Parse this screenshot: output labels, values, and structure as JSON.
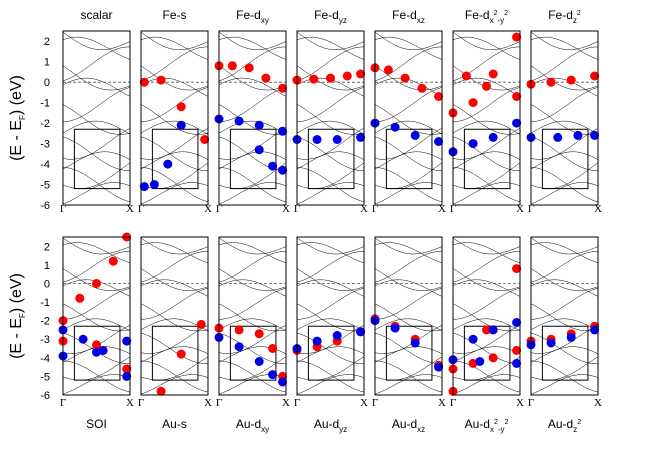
{
  "figure": {
    "y_label_parts": [
      "(E - E",
      "F",
      ") (eV)"
    ],
    "y_ticks": [
      "2",
      "1",
      "0",
      "-1",
      "-2",
      "-3",
      "-4",
      "-5",
      "-6"
    ],
    "k_labels": [
      "Γ",
      "X"
    ]
  },
  "colors": {
    "red": "#ff0000",
    "blue": "#0000e6",
    "band": "#000000",
    "box": "#000000"
  },
  "chart_data": [
    {
      "type": "line",
      "row": "top",
      "x": [
        "Γ",
        "X"
      ],
      "ylim": [
        -6,
        2.5
      ],
      "ylabel": "(E - EF) (eV)",
      "fermi_level": 0,
      "boxed_window": {
        "y": [
          -5.2,
          -2.3
        ]
      },
      "panels": [
        {
          "title": [
            "scalar"
          ],
          "red": [],
          "blue": []
        },
        {
          "title": [
            "Fe-s"
          ],
          "red": [
            [
              0.05,
              0.0
            ],
            [
              0.3,
              0.1
            ],
            [
              0.6,
              -1.2
            ],
            [
              0.95,
              -2.8
            ]
          ],
          "blue": [
            [
              0.05,
              -5.1
            ],
            [
              0.2,
              -5.0
            ],
            [
              0.4,
              -4.0
            ],
            [
              0.6,
              -2.1
            ]
          ]
        },
        {
          "title": [
            "Fe-d",
            "xy"
          ],
          "red": [
            [
              0.0,
              0.8
            ],
            [
              0.2,
              0.8
            ],
            [
              0.45,
              0.7
            ],
            [
              0.7,
              0.2
            ],
            [
              0.95,
              -0.3
            ]
          ],
          "blue": [
            [
              0.0,
              -1.8
            ],
            [
              0.3,
              -1.9
            ],
            [
              0.6,
              -2.1
            ],
            [
              0.95,
              -2.4
            ],
            [
              0.6,
              -3.3
            ],
            [
              0.8,
              -4.1
            ],
            [
              0.95,
              -4.3
            ]
          ]
        },
        {
          "title": [
            "Fe-d",
            "yz"
          ],
          "red": [
            [
              0.0,
              0.1
            ],
            [
              0.25,
              0.15
            ],
            [
              0.5,
              0.2
            ],
            [
              0.75,
              0.3
            ],
            [
              0.95,
              0.4
            ]
          ],
          "blue": [
            [
              0.0,
              -2.8
            ],
            [
              0.3,
              -2.8
            ],
            [
              0.6,
              -2.8
            ],
            [
              0.95,
              -2.7
            ]
          ]
        },
        {
          "title": [
            "Fe-d",
            "xz"
          ],
          "red": [
            [
              0.0,
              0.7
            ],
            [
              0.2,
              0.6
            ],
            [
              0.45,
              0.2
            ],
            [
              0.7,
              -0.3
            ],
            [
              0.95,
              -0.7
            ]
          ],
          "blue": [
            [
              0.0,
              -2.0
            ],
            [
              0.3,
              -2.2
            ],
            [
              0.6,
              -2.6
            ],
            [
              0.95,
              -2.9
            ]
          ]
        },
        {
          "title": [
            "Fe-d",
            "x",
            "2",
            "-y",
            "2"
          ],
          "red": [
            [
              0.0,
              -1.5
            ],
            [
              0.3,
              -1.0
            ],
            [
              0.6,
              0.4
            ],
            [
              0.95,
              2.2
            ],
            [
              0.2,
              0.3
            ],
            [
              0.5,
              -0.2
            ],
            [
              0.95,
              -0.7
            ]
          ],
          "blue": [
            [
              0.0,
              -3.4
            ],
            [
              0.3,
              -3.0
            ],
            [
              0.6,
              -2.7
            ],
            [
              0.95,
              -2.0
            ]
          ]
        },
        {
          "title": [
            "Fe-d",
            "z",
            "2"
          ],
          "red": [
            [
              0.0,
              -0.1
            ],
            [
              0.3,
              0.0
            ],
            [
              0.6,
              0.1
            ],
            [
              0.95,
              0.3
            ]
          ],
          "blue": [
            [
              0.0,
              -2.7
            ],
            [
              0.4,
              -2.7
            ],
            [
              0.7,
              -2.6
            ],
            [
              0.95,
              -2.6
            ]
          ]
        }
      ]
    },
    {
      "type": "line",
      "row": "bottom",
      "x": [
        "Γ",
        "X"
      ],
      "ylim": [
        -6,
        2.5
      ],
      "ylabel": "(E - EF) (eV)",
      "fermi_level": 0,
      "boxed_window": {
        "y": [
          -5.2,
          -2.3
        ]
      },
      "panels": [
        {
          "title": [
            "SOI"
          ],
          "red": [
            [
              0.0,
              -2.0
            ],
            [
              0.25,
              -0.8
            ],
            [
              0.5,
              0.0
            ],
            [
              0.75,
              1.2
            ],
            [
              0.95,
              2.5
            ],
            [
              0.0,
              -3.1
            ],
            [
              0.5,
              -3.3
            ],
            [
              0.95,
              -4.6
            ]
          ],
          "blue": [
            [
              0.0,
              -2.5
            ],
            [
              0.3,
              -3.0
            ],
            [
              0.6,
              -3.6
            ],
            [
              0.95,
              -5.0
            ],
            [
              0.0,
              -3.9
            ],
            [
              0.5,
              -3.7
            ],
            [
              0.95,
              -3.1
            ]
          ]
        },
        {
          "title": [
            "Au-s"
          ],
          "red": [
            [
              0.3,
              -5.8
            ],
            [
              0.6,
              -3.8
            ],
            [
              0.9,
              -2.2
            ]
          ],
          "blue": []
        },
        {
          "title": [
            "Au-d",
            "xy"
          ],
          "red": [
            [
              0.0,
              -2.4
            ],
            [
              0.3,
              -2.5
            ],
            [
              0.6,
              -2.7
            ],
            [
              0.8,
              -3.5
            ],
            [
              0.95,
              -5.0
            ]
          ],
          "blue": [
            [
              0.0,
              -2.9
            ],
            [
              0.3,
              -3.4
            ],
            [
              0.6,
              -4.2
            ],
            [
              0.8,
              -4.9
            ],
            [
              0.95,
              -5.3
            ]
          ]
        },
        {
          "title": [
            "Au-d",
            "yz"
          ],
          "red": [
            [
              0.0,
              -3.6
            ],
            [
              0.3,
              -3.4
            ],
            [
              0.6,
              -3.1
            ],
            [
              0.95,
              -2.6
            ]
          ],
          "blue": [
            [
              0.0,
              -3.5
            ],
            [
              0.3,
              -3.1
            ],
            [
              0.6,
              -2.8
            ],
            [
              0.95,
              -2.6
            ]
          ]
        },
        {
          "title": [
            "Au-d",
            "xz"
          ],
          "red": [
            [
              0.0,
              -1.9
            ],
            [
              0.3,
              -2.3
            ],
            [
              0.6,
              -3.0
            ],
            [
              0.95,
              -4.4
            ]
          ],
          "blue": [
            [
              0.0,
              -2.0
            ],
            [
              0.3,
              -2.4
            ],
            [
              0.6,
              -3.2
            ],
            [
              0.95,
              -4.5
            ]
          ]
        },
        {
          "title": [
            "Au-d",
            "x",
            "2",
            "-y",
            "2"
          ],
          "red": [
            [
              0.0,
              -4.6
            ],
            [
              0.3,
              -4.3
            ],
            [
              0.6,
              -4.0
            ],
            [
              0.95,
              -3.6
            ],
            [
              0.0,
              -5.8
            ],
            [
              0.5,
              -2.5
            ],
            [
              0.95,
              0.8
            ]
          ],
          "blue": [
            [
              0.0,
              -4.1
            ],
            [
              0.4,
              -4.2
            ],
            [
              0.95,
              -4.3
            ],
            [
              0.3,
              -3.0
            ],
            [
              0.6,
              -2.5
            ],
            [
              0.95,
              -2.1
            ]
          ]
        },
        {
          "title": [
            "Au-d",
            "z",
            "2"
          ],
          "red": [
            [
              0.0,
              -3.1
            ],
            [
              0.3,
              -3.0
            ],
            [
              0.6,
              -2.7
            ],
            [
              0.95,
              -2.3
            ]
          ],
          "blue": [
            [
              0.0,
              -3.3
            ],
            [
              0.3,
              -3.2
            ],
            [
              0.6,
              -2.9
            ],
            [
              0.95,
              -2.5
            ]
          ]
        }
      ]
    }
  ]
}
